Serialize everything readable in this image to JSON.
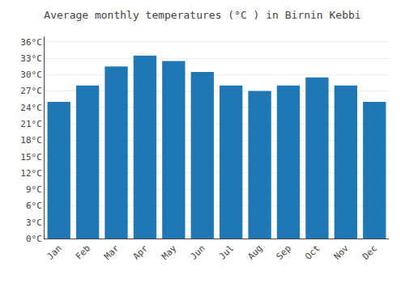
{
  "chart_data": {
    "type": "bar",
    "title": "Average monthly temperatures (°C ) in Birnin Kebbi",
    "categories": [
      "Jan",
      "Feb",
      "Mar",
      "Apr",
      "May",
      "Jun",
      "Jul",
      "Aug",
      "Sep",
      "Oct",
      "Nov",
      "Dec"
    ],
    "values": [
      25.0,
      28.0,
      31.5,
      33.5,
      32.5,
      30.5,
      28.0,
      27.0,
      28.0,
      29.5,
      28.0,
      25.0
    ],
    "ylim": [
      0,
      37
    ],
    "yticks": [
      {
        "value": 0,
        "label": "0°C"
      },
      {
        "value": 3,
        "label": "3°C"
      },
      {
        "value": 6,
        "label": "6°C"
      },
      {
        "value": 9,
        "label": "9°C"
      },
      {
        "value": 12,
        "label": "12°C"
      },
      {
        "value": 15,
        "label": "15°C"
      },
      {
        "value": 18,
        "label": "18°C"
      },
      {
        "value": 21,
        "label": "21°C"
      },
      {
        "value": 24,
        "label": "24°C"
      },
      {
        "value": 27,
        "label": "27°C"
      },
      {
        "value": 30,
        "label": "30°C"
      },
      {
        "value": 33,
        "label": "33°C"
      },
      {
        "value": 36,
        "label": "36°C"
      }
    ],
    "grid": true
  }
}
